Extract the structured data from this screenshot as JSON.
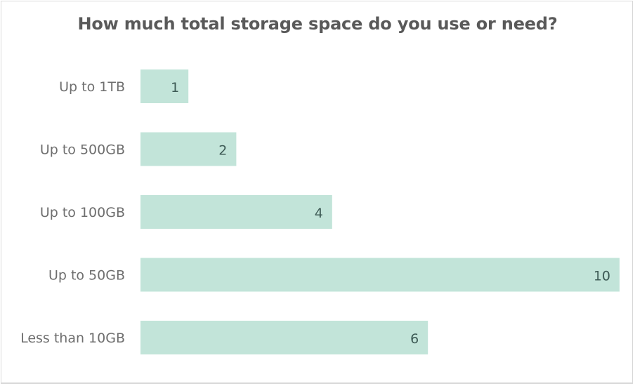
{
  "chart_data": {
    "type": "bar",
    "orientation": "horizontal",
    "title": "How much total storage space do you use or need?",
    "xlabel": "",
    "ylabel": "",
    "categories": [
      "Up to 1TB",
      "Up to 500GB",
      "Up to 100GB",
      "Up to 50GB",
      "Less than 10GB"
    ],
    "values": [
      1,
      2,
      4,
      10,
      6
    ],
    "xlim": [
      0,
      10
    ],
    "grid": false,
    "legend": "none",
    "data_labels": "inside-end",
    "bar_color": "#c2e4d9",
    "label_color": "#3d5a55"
  }
}
